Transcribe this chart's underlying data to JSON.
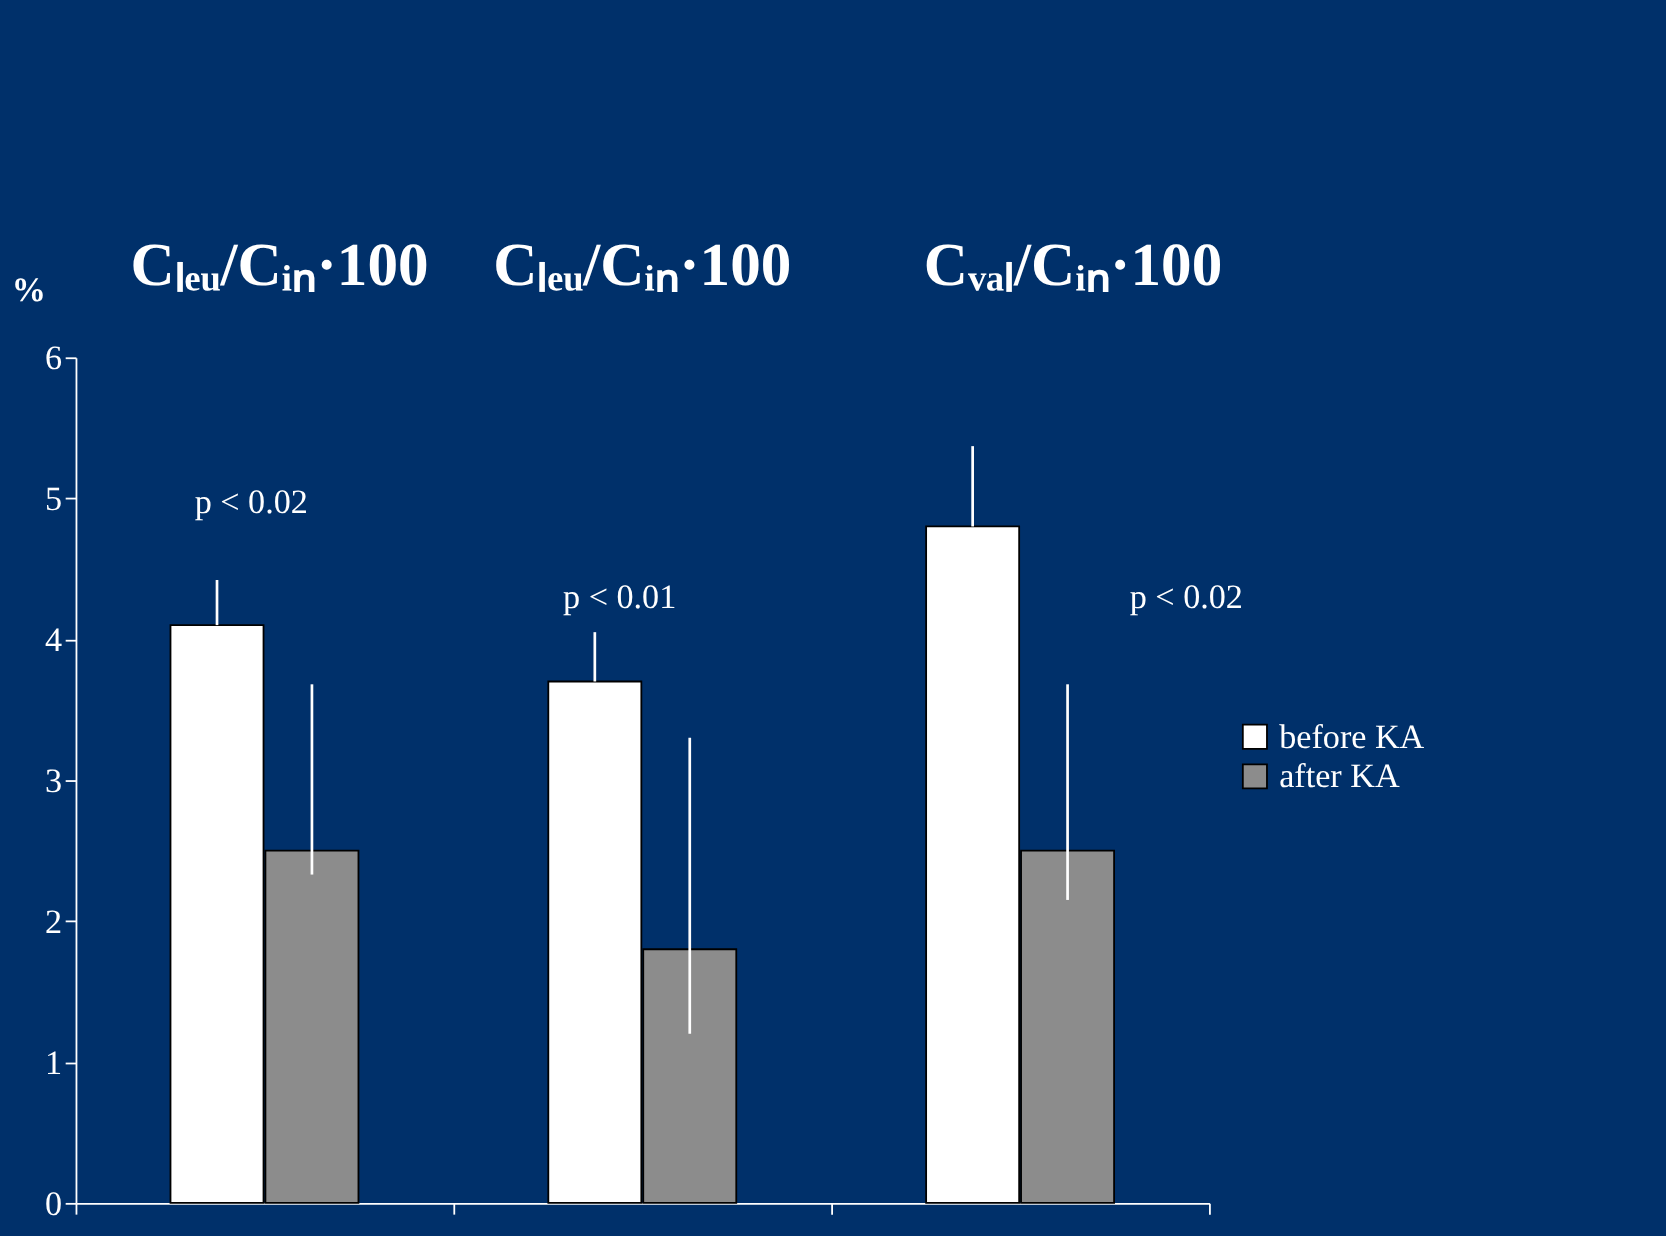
{
  "chart_data": {
    "type": "bar",
    "ylabel": "%",
    "categories": [
      null,
      null,
      null
    ],
    "series": [
      {
        "name": "before KA",
        "color": "#ffffff",
        "values": [
          4.1,
          3.7,
          4.8
        ],
        "errors": [
          [
            4.1,
            4.42
          ],
          [
            3.7,
            4.05
          ],
          [
            4.8,
            5.37
          ]
        ]
      },
      {
        "name": "after KA",
        "color": "#8c8c8c",
        "values": [
          2.5,
          1.8,
          2.5
        ],
        "errors": [
          [
            2.33,
            3.68
          ],
          [
            1.2,
            3.3
          ],
          [
            2.15,
            3.68
          ]
        ]
      }
    ],
    "ylim": [
      0,
      6
    ],
    "yticks": [
      0,
      1,
      2,
      3,
      4,
      5,
      6
    ],
    "grid": false,
    "legend": "right",
    "tick_labels": "y",
    "annotations": [
      "Cₗₑᵤ/Cᵢₙ·100",
      "Cₗₑᵤ/Cᵢₙ·100",
      "Cᵥₐₗ/Cᵢₙ·100",
      "p < 0.02",
      "p < 0.01",
      "p < 0.02"
    ]
  }
}
